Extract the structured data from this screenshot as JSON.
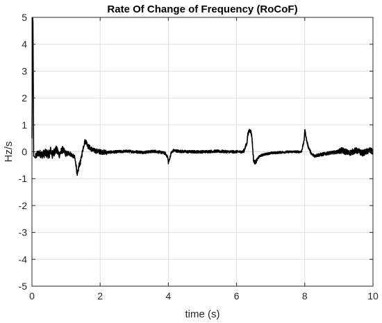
{
  "chart_data": {
    "type": "line",
    "title": "Rate Of Change of Frequency (RoCoF)",
    "xlabel": "time (s)",
    "ylabel": "Hz/s",
    "xlim": [
      0,
      10
    ],
    "ylim": [
      -5,
      5
    ],
    "xticks": [
      0,
      2,
      4,
      6,
      8,
      10
    ],
    "yticks": [
      -5,
      -4,
      -3,
      -2,
      -1,
      0,
      1,
      2,
      3,
      4,
      5
    ],
    "grid": true,
    "series": [
      {
        "color": "#000000",
        "x": [
          0,
          0.02,
          0.03,
          0.05,
          0.08,
          0.1,
          0.15,
          0.2,
          0.3,
          0.4,
          0.5,
          0.55,
          0.6,
          0.7,
          0.8,
          0.9,
          1.0,
          1.1,
          1.2,
          1.25,
          1.3,
          1.33,
          1.35,
          1.38,
          1.42,
          1.48,
          1.52,
          1.56,
          1.6,
          1.65,
          1.7,
          1.8,
          2.0,
          2.2,
          2.5,
          2.8,
          3.0,
          3.3,
          3.6,
          3.9,
          3.98,
          4.0,
          4.02,
          4.08,
          4.15,
          4.3,
          4.6,
          5.0,
          5.4,
          5.8,
          6.2,
          6.3,
          6.33,
          6.38,
          6.42,
          6.45,
          6.48,
          6.5,
          6.55,
          6.6,
          6.65,
          6.7,
          6.8,
          7.0,
          7.3,
          7.6,
          7.9,
          7.98,
          8.0,
          8.02,
          8.05,
          8.1,
          8.2,
          8.3,
          8.4,
          8.5,
          8.7,
          8.9,
          9.1,
          9.3,
          9.5,
          9.7,
          9.9,
          10
        ],
        "y": [
          0.5,
          5.0,
          4.8,
          -0.15,
          -0.2,
          -0.18,
          -0.1,
          -0.05,
          -0.1,
          -0.05,
          -0.1,
          0.05,
          -0.12,
          0.1,
          -0.1,
          0.08,
          -0.08,
          -0.05,
          -0.15,
          -0.2,
          -0.55,
          -0.9,
          -0.75,
          -0.5,
          -0.4,
          0.0,
          0.25,
          0.4,
          0.35,
          0.2,
          0.15,
          0.05,
          0.0,
          -0.02,
          0.0,
          0.02,
          0.0,
          -0.02,
          0.02,
          -0.05,
          -0.2,
          -0.4,
          -0.35,
          -0.05,
          0.05,
          0.02,
          0.0,
          0.0,
          0.02,
          0.0,
          0.0,
          0.3,
          0.65,
          0.8,
          0.75,
          0.55,
          0.0,
          -0.35,
          -0.4,
          -0.3,
          -0.2,
          -0.15,
          -0.1,
          -0.05,
          -0.02,
          0.0,
          0.0,
          0.4,
          0.8,
          0.7,
          0.45,
          0.2,
          -0.1,
          -0.15,
          -0.12,
          -0.1,
          -0.05,
          -0.02,
          0.05,
          -0.05,
          0.05,
          -0.05,
          0.05,
          0.0
        ]
      }
    ]
  }
}
